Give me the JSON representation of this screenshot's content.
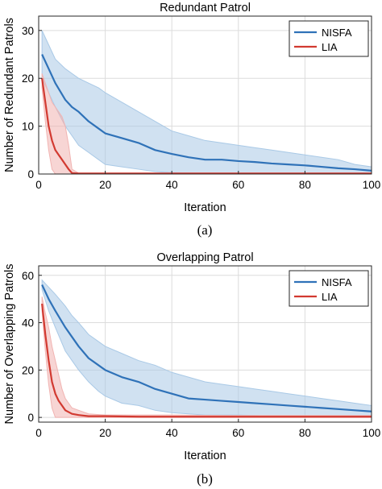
{
  "chart_data": [
    {
      "type": "line",
      "title": "Redundant Patrol",
      "xlabel": "Iteration",
      "ylabel": "Number of Redundant Patrols",
      "caption": "(a)",
      "xlim": [
        0,
        100
      ],
      "ylim": [
        0,
        33
      ],
      "xticks": [
        0,
        20,
        40,
        60,
        80,
        100
      ],
      "yticks": [
        0,
        10,
        20,
        30
      ],
      "grid": true,
      "legend": "top-right",
      "series": [
        {
          "name": "NISFA",
          "color": "#2f72b8",
          "band_color": "#a9c9e6",
          "mean": [
            [
              1,
              25
            ],
            [
              3,
              22
            ],
            [
              5,
              19
            ],
            [
              8,
              15.5
            ],
            [
              10,
              14
            ],
            [
              12,
              13
            ],
            [
              15,
              11
            ],
            [
              18,
              9.5
            ],
            [
              20,
              8.5
            ],
            [
              25,
              7.5
            ],
            [
              30,
              6.5
            ],
            [
              35,
              5
            ],
            [
              40,
              4.2
            ],
            [
              45,
              3.5
            ],
            [
              50,
              3
            ],
            [
              55,
              3
            ],
            [
              60,
              2.7
            ],
            [
              65,
              2.5
            ],
            [
              70,
              2.2
            ],
            [
              75,
              2
            ],
            [
              80,
              1.8
            ],
            [
              85,
              1.5
            ],
            [
              90,
              1.2
            ],
            [
              95,
              1
            ],
            [
              100,
              0.7
            ]
          ],
          "upper": [
            [
              1,
              30
            ],
            [
              3,
              27
            ],
            [
              5,
              24
            ],
            [
              8,
              22
            ],
            [
              10,
              21
            ],
            [
              12,
              20
            ],
            [
              15,
              19
            ],
            [
              18,
              18
            ],
            [
              20,
              17
            ],
            [
              25,
              15
            ],
            [
              30,
              13
            ],
            [
              35,
              11
            ],
            [
              40,
              9
            ],
            [
              45,
              8
            ],
            [
              50,
              7
            ],
            [
              55,
              6.5
            ],
            [
              60,
              6
            ],
            [
              65,
              5.5
            ],
            [
              70,
              5
            ],
            [
              75,
              4.5
            ],
            [
              80,
              4
            ],
            [
              85,
              3.5
            ],
            [
              90,
              3
            ],
            [
              95,
              2
            ],
            [
              100,
              1.5
            ]
          ],
          "lower": [
            [
              1,
              20
            ],
            [
              3,
              17
            ],
            [
              5,
              14
            ],
            [
              8,
              10
            ],
            [
              10,
              8
            ],
            [
              12,
              6
            ],
            [
              15,
              4.5
            ],
            [
              18,
              3
            ],
            [
              20,
              2
            ],
            [
              25,
              1.5
            ],
            [
              30,
              1
            ],
            [
              35,
              0.5
            ],
            [
              40,
              0.3
            ],
            [
              45,
              0.2
            ],
            [
              50,
              0.1
            ],
            [
              55,
              0.1
            ],
            [
              60,
              0.1
            ],
            [
              65,
              0
            ],
            [
              70,
              0
            ],
            [
              75,
              0
            ],
            [
              80,
              0
            ],
            [
              85,
              0
            ],
            [
              90,
              0
            ],
            [
              95,
              0
            ],
            [
              100,
              0
            ]
          ]
        },
        {
          "name": "LIA",
          "color": "#d23a31",
          "band_color": "#f1b3b1",
          "mean": [
            [
              1,
              20
            ],
            [
              2,
              15
            ],
            [
              3,
              10
            ],
            [
              4,
              7
            ],
            [
              5,
              5
            ],
            [
              6,
              4
            ],
            [
              7,
              3
            ],
            [
              8,
              2
            ],
            [
              9,
              1
            ],
            [
              10,
              0.2
            ],
            [
              12,
              0.1
            ],
            [
              20,
              0.1
            ],
            [
              40,
              0.1
            ],
            [
              60,
              0.1
            ],
            [
              80,
              0.1
            ],
            [
              100,
              0.1
            ]
          ],
          "upper": [
            [
              1,
              21
            ],
            [
              2,
              19
            ],
            [
              3,
              17
            ],
            [
              4,
              15
            ],
            [
              5,
              14
            ],
            [
              6,
              13
            ],
            [
              7,
              12
            ],
            [
              8,
              10
            ],
            [
              9,
              6
            ],
            [
              10,
              1
            ],
            [
              12,
              0.2
            ],
            [
              100,
              0.2
            ]
          ],
          "lower": [
            [
              1,
              18
            ],
            [
              2,
              11
            ],
            [
              3,
              5
            ],
            [
              4,
              1
            ],
            [
              5,
              0
            ],
            [
              6,
              0
            ],
            [
              7,
              0
            ],
            [
              8,
              0
            ],
            [
              9,
              0
            ],
            [
              10,
              0
            ],
            [
              12,
              0
            ],
            [
              100,
              0
            ]
          ]
        }
      ]
    },
    {
      "type": "line",
      "title": "Overlapping Patrol",
      "xlabel": "Iteration",
      "ylabel": "Number of Overlapping Patrols",
      "caption": "(b)",
      "xlim": [
        0,
        100
      ],
      "ylim": [
        -2,
        64
      ],
      "xticks": [
        0,
        20,
        40,
        60,
        80,
        100
      ],
      "yticks": [
        0,
        20,
        40,
        60
      ],
      "grid": true,
      "legend": "top-right",
      "series": [
        {
          "name": "NISFA",
          "color": "#2f72b8",
          "band_color": "#a9c9e6",
          "mean": [
            [
              1,
              56
            ],
            [
              3,
              50
            ],
            [
              5,
              45
            ],
            [
              8,
              38
            ],
            [
              10,
              34
            ],
            [
              12,
              30
            ],
            [
              15,
              25
            ],
            [
              18,
              22
            ],
            [
              20,
              20
            ],
            [
              25,
              17
            ],
            [
              30,
              15
            ],
            [
              35,
              12
            ],
            [
              40,
              10
            ],
            [
              45,
              8
            ],
            [
              50,
              7.5
            ],
            [
              55,
              7
            ],
            [
              60,
              6.5
            ],
            [
              65,
              6
            ],
            [
              70,
              5.5
            ],
            [
              75,
              5
            ],
            [
              80,
              4.5
            ],
            [
              85,
              4
            ],
            [
              90,
              3.5
            ],
            [
              95,
              3
            ],
            [
              100,
              2.5
            ]
          ],
          "upper": [
            [
              1,
              58
            ],
            [
              3,
              55
            ],
            [
              5,
              52
            ],
            [
              8,
              47
            ],
            [
              10,
              43
            ],
            [
              12,
              40
            ],
            [
              15,
              35
            ],
            [
              18,
              32
            ],
            [
              20,
              30
            ],
            [
              25,
              27
            ],
            [
              30,
              24
            ],
            [
              35,
              22
            ],
            [
              40,
              19
            ],
            [
              45,
              17
            ],
            [
              50,
              15
            ],
            [
              55,
              14
            ],
            [
              60,
              13
            ],
            [
              65,
              12
            ],
            [
              70,
              11
            ],
            [
              75,
              10
            ],
            [
              80,
              9
            ],
            [
              85,
              8
            ],
            [
              90,
              7
            ],
            [
              95,
              6
            ],
            [
              100,
              5
            ]
          ],
          "lower": [
            [
              1,
              54
            ],
            [
              3,
              45
            ],
            [
              5,
              38
            ],
            [
              8,
              28
            ],
            [
              10,
              24
            ],
            [
              12,
              20
            ],
            [
              15,
              15
            ],
            [
              18,
              11
            ],
            [
              20,
              9
            ],
            [
              25,
              6
            ],
            [
              30,
              5
            ],
            [
              35,
              3
            ],
            [
              40,
              2
            ],
            [
              45,
              1.5
            ],
            [
              50,
              1
            ],
            [
              55,
              1
            ],
            [
              60,
              1
            ],
            [
              65,
              0.8
            ],
            [
              70,
              0.5
            ],
            [
              75,
              0.5
            ],
            [
              80,
              0.5
            ],
            [
              85,
              0.3
            ],
            [
              90,
              0.3
            ],
            [
              95,
              0.3
            ],
            [
              100,
              0.3
            ]
          ]
        },
        {
          "name": "LIA",
          "color": "#d23a31",
          "band_color": "#f1b3b1",
          "mean": [
            [
              1,
              48
            ],
            [
              2,
              35
            ],
            [
              3,
              24
            ],
            [
              4,
              15
            ],
            [
              5,
              10
            ],
            [
              6,
              7
            ],
            [
              7,
              5
            ],
            [
              8,
              3
            ],
            [
              10,
              1.5
            ],
            [
              12,
              1
            ],
            [
              15,
              0.5
            ],
            [
              20,
              0.5
            ],
            [
              30,
              0.3
            ],
            [
              40,
              0.3
            ],
            [
              60,
              0.3
            ],
            [
              80,
              0.3
            ],
            [
              100,
              0.3
            ]
          ],
          "upper": [
            [
              1,
              51
            ],
            [
              2,
              44
            ],
            [
              3,
              38
            ],
            [
              4,
              30
            ],
            [
              5,
              24
            ],
            [
              6,
              18
            ],
            [
              7,
              12
            ],
            [
              8,
              8
            ],
            [
              10,
              4
            ],
            [
              12,
              3
            ],
            [
              15,
              1.5
            ],
            [
              20,
              1
            ],
            [
              40,
              1
            ],
            [
              60,
              0.8
            ],
            [
              80,
              0.8
            ],
            [
              100,
              0.8
            ]
          ],
          "lower": [
            [
              1,
              45
            ],
            [
              2,
              28
            ],
            [
              3,
              14
            ],
            [
              4,
              4
            ],
            [
              5,
              0
            ],
            [
              6,
              0
            ],
            [
              7,
              0
            ],
            [
              8,
              0
            ],
            [
              10,
              0
            ],
            [
              12,
              0
            ],
            [
              15,
              0
            ],
            [
              100,
              0
            ]
          ]
        }
      ]
    }
  ]
}
